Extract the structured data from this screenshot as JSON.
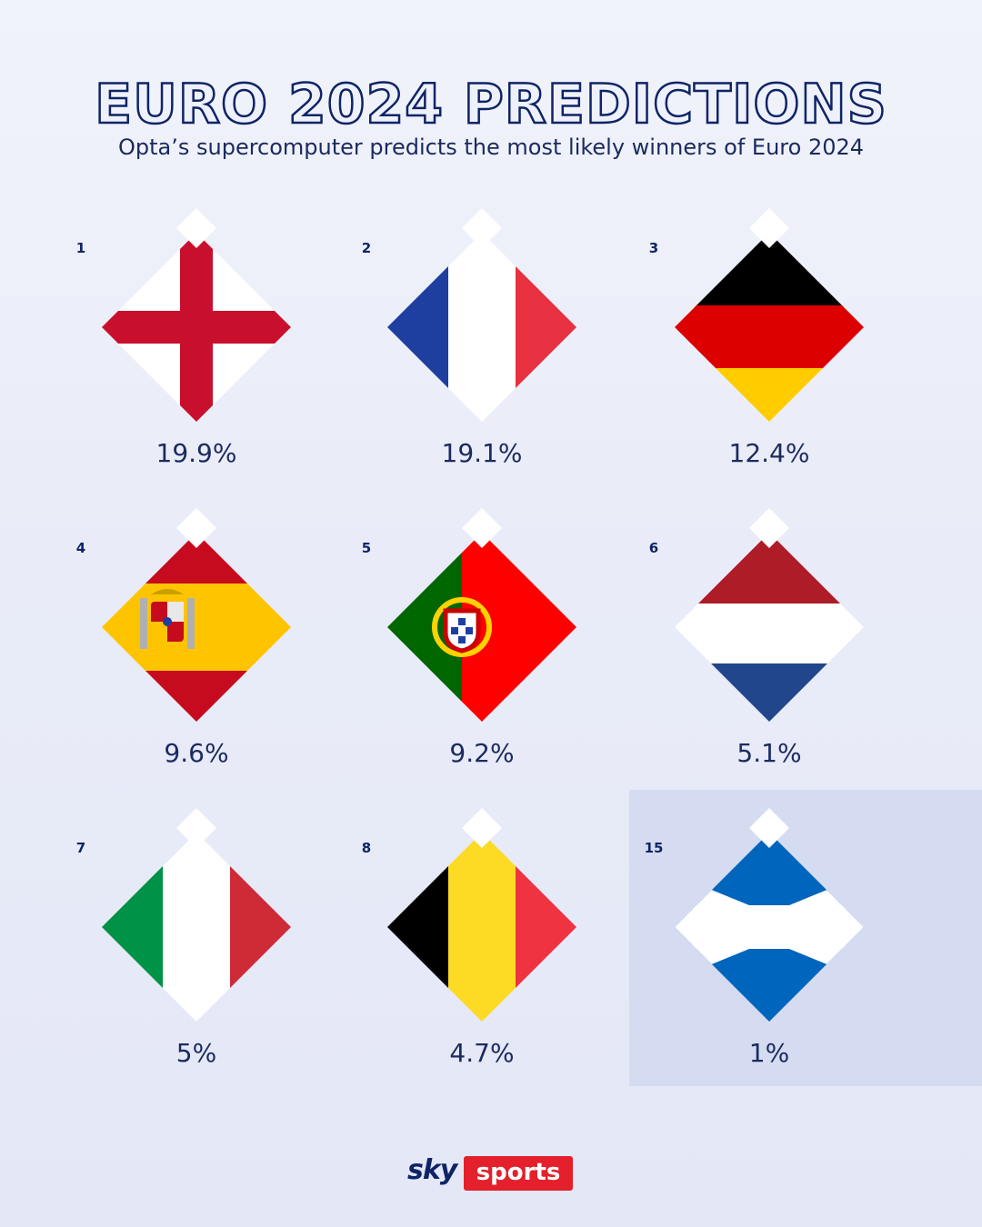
{
  "header": {
    "title": "EURO 2024 PREDICTIONS",
    "subtitle": "Opta’s supercomputer predicts the most likely winners of Euro 2024"
  },
  "predictions": [
    {
      "rank": "1",
      "country": "England",
      "percent": "19.9%",
      "value": 19.9,
      "flag_icon": "england-flag-icon"
    },
    {
      "rank": "2",
      "country": "France",
      "percent": "19.1%",
      "value": 19.1,
      "flag_icon": "france-flag-icon"
    },
    {
      "rank": "3",
      "country": "Germany",
      "percent": "12.4%",
      "value": 12.4,
      "flag_icon": "germany-flag-icon"
    },
    {
      "rank": "4",
      "country": "Spain",
      "percent": "9.6%",
      "value": 9.6,
      "flag_icon": "spain-flag-icon"
    },
    {
      "rank": "5",
      "country": "Portugal",
      "percent": "9.2%",
      "value": 9.2,
      "flag_icon": "portugal-flag-icon"
    },
    {
      "rank": "6",
      "country": "Netherlands",
      "percent": "5.1%",
      "value": 5.1,
      "flag_icon": "netherlands-flag-icon"
    },
    {
      "rank": "7",
      "country": "Italy",
      "percent": "5%",
      "value": 5,
      "flag_icon": "italy-flag-icon"
    },
    {
      "rank": "8",
      "country": "Belgium",
      "percent": "4.7%",
      "value": 4.7,
      "flag_icon": "belgium-flag-icon"
    },
    {
      "rank": "15",
      "country": "Scotland",
      "percent": "1%",
      "value": 1,
      "flag_icon": "scotland-flag-icon",
      "highlighted": true
    }
  ],
  "logo": {
    "sky": "sky",
    "sports": "sports"
  },
  "colors": {
    "title_navy": "#0e2466",
    "highlight_panel": "#d5dbf0",
    "brand_red": "#e3202b"
  }
}
